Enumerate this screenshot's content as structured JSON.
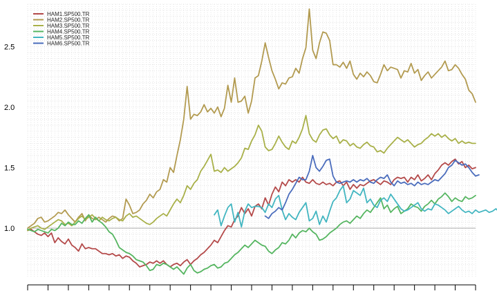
{
  "chart_data": {
    "type": "line",
    "title": "",
    "xlabel": "",
    "ylabel": "",
    "x_count": 133,
    "x_tick_count": 23,
    "ylim": [
      0.6,
      2.85
    ],
    "y_ticks": [
      1.0,
      1.5,
      2.0,
      2.5
    ],
    "y_tick_labels": [
      "1.0",
      "1.5",
      "2.0",
      "2.5"
    ],
    "reference_line": 1.0,
    "grid": true,
    "legend_position": "top-left",
    "series": [
      {
        "name": "HAM1.SP500.TR",
        "color": "#b44a4a",
        "start": 0,
        "values": [
          0.98,
          0.99,
          0.97,
          0.95,
          0.94,
          0.96,
          0.93,
          0.96,
          0.88,
          0.92,
          0.89,
          0.87,
          0.91,
          0.86,
          0.84,
          0.81,
          0.87,
          0.83,
          0.84,
          0.83,
          0.83,
          0.81,
          0.79,
          0.79,
          0.78,
          0.79,
          0.77,
          0.78,
          0.75,
          0.77,
          0.76,
          0.73,
          0.71,
          0.68,
          0.69,
          0.7,
          0.72,
          0.71,
          0.73,
          0.71,
          0.73,
          0.7,
          0.68,
          0.7,
          0.71,
          0.69,
          0.72,
          0.74,
          0.7,
          0.73,
          0.75,
          0.78,
          0.8,
          0.83,
          0.86,
          0.9,
          0.88,
          0.93,
          0.98,
          1.02,
          1.01,
          1.07,
          1.1,
          1.17,
          1.12,
          1.16,
          1.1,
          1.18,
          1.2,
          1.16,
          1.25,
          1.19,
          1.28,
          1.34,
          1.3,
          1.38,
          1.35,
          1.4,
          1.38,
          1.4,
          1.38,
          1.42,
          1.38,
          1.37,
          1.4,
          1.37,
          1.36,
          1.38,
          1.36,
          1.37,
          1.35,
          1.38,
          1.39,
          1.35,
          1.38,
          1.32,
          1.36,
          1.33,
          1.36,
          1.35,
          1.37,
          1.39,
          1.4,
          1.38,
          1.36,
          1.39,
          1.38,
          1.36,
          1.4,
          1.42,
          1.41,
          1.42,
          1.38,
          1.42,
          1.4,
          1.44,
          1.39,
          1.41,
          1.44,
          1.4,
          1.45,
          1.48,
          1.52,
          1.54,
          1.52,
          1.55,
          1.57,
          1.53,
          1.55,
          1.5,
          1.52,
          1.49,
          1.5
        ]
      },
      {
        "name": "HAM2.SP500.TR",
        "color": "#b29a4f",
        "start": 0,
        "values": [
          1.0,
          1.02,
          1.04,
          1.08,
          1.09,
          1.05,
          1.06,
          1.08,
          1.1,
          1.13,
          1.12,
          1.15,
          1.11,
          1.08,
          1.05,
          1.09,
          1.12,
          1.06,
          1.11,
          1.08,
          1.07,
          1.09,
          1.07,
          1.05,
          1.08,
          1.1,
          1.09,
          1.06,
          1.08,
          1.24,
          1.19,
          1.12,
          1.13,
          1.15,
          1.2,
          1.23,
          1.28,
          1.25,
          1.3,
          1.32,
          1.4,
          1.38,
          1.5,
          1.46,
          1.6,
          1.73,
          1.9,
          2.17,
          1.9,
          1.94,
          1.93,
          1.96,
          2.02,
          1.96,
          1.99,
          1.95,
          2.0,
          1.92,
          1.99,
          2.18,
          2.04,
          2.24,
          2.04,
          2.05,
          2.09,
          1.95,
          2.05,
          2.24,
          2.26,
          2.38,
          2.53,
          2.41,
          2.3,
          2.23,
          2.15,
          2.2,
          2.19,
          2.24,
          2.25,
          2.32,
          2.28,
          2.4,
          2.49,
          2.81,
          2.47,
          2.4,
          2.53,
          2.62,
          2.61,
          2.55,
          2.35,
          2.35,
          2.33,
          2.37,
          2.32,
          2.38,
          2.27,
          2.23,
          2.28,
          2.25,
          2.29,
          2.26,
          2.21,
          2.2,
          2.27,
          2.35,
          2.3,
          2.33,
          2.32,
          2.31,
          2.24,
          2.3,
          2.29,
          2.36,
          2.28,
          2.31,
          2.22,
          2.26,
          2.29,
          2.24,
          2.27,
          2.3,
          2.33,
          2.38,
          2.3,
          2.31,
          2.35,
          2.32,
          2.27,
          2.23,
          2.14,
          2.11,
          2.04
        ]
      },
      {
        "name": "HAM3.SP500.TR",
        "color": "#a8b048",
        "start": 0,
        "values": [
          0.98,
          1.0,
          1.01,
          1.02,
          1.0,
          0.99,
          1.01,
          1.03,
          1.05,
          1.07,
          1.06,
          1.03,
          1.04,
          1.02,
          1.05,
          1.08,
          1.1,
          1.07,
          1.09,
          1.11,
          1.08,
          1.06,
          1.09,
          1.07,
          1.06,
          1.08,
          1.09,
          1.07,
          1.06,
          1.1,
          1.12,
          1.09,
          1.1,
          1.08,
          1.06,
          1.04,
          1.03,
          1.05,
          1.08,
          1.1,
          1.12,
          1.1,
          1.15,
          1.2,
          1.24,
          1.21,
          1.27,
          1.35,
          1.32,
          1.37,
          1.4,
          1.47,
          1.51,
          1.56,
          1.61,
          1.47,
          1.48,
          1.46,
          1.5,
          1.47,
          1.49,
          1.51,
          1.54,
          1.58,
          1.66,
          1.65,
          1.72,
          1.77,
          1.85,
          1.8,
          1.67,
          1.64,
          1.65,
          1.7,
          1.76,
          1.71,
          1.67,
          1.65,
          1.72,
          1.7,
          1.75,
          1.82,
          1.93,
          1.78,
          1.73,
          1.71,
          1.77,
          1.81,
          1.82,
          1.77,
          1.74,
          1.76,
          1.7,
          1.73,
          1.72,
          1.68,
          1.7,
          1.67,
          1.66,
          1.69,
          1.71,
          1.68,
          1.67,
          1.63,
          1.64,
          1.62,
          1.66,
          1.69,
          1.72,
          1.75,
          1.73,
          1.71,
          1.73,
          1.7,
          1.67,
          1.69,
          1.7,
          1.73,
          1.75,
          1.78,
          1.76,
          1.78,
          1.75,
          1.77,
          1.74,
          1.72,
          1.74,
          1.7,
          1.72,
          1.7,
          1.71,
          1.7,
          1.7
        ]
      },
      {
        "name": "HAM4.SP500.TR",
        "color": "#55b560",
        "start": 0,
        "values": [
          0.99,
          0.98,
          0.97,
          0.99,
          0.98,
          0.97,
          0.96,
          0.99,
          0.98,
          1.0,
          1.04,
          1.02,
          1.05,
          1.03,
          1.03,
          1.06,
          1.04,
          1.08,
          1.11,
          1.05,
          1.09,
          1.06,
          1.04,
          1.01,
          0.97,
          0.95,
          0.9,
          0.84,
          0.82,
          0.8,
          0.79,
          0.77,
          0.74,
          0.73,
          0.72,
          0.69,
          0.65,
          0.66,
          0.7,
          0.69,
          0.71,
          0.7,
          0.68,
          0.66,
          0.68,
          0.65,
          0.62,
          0.67,
          0.7,
          0.65,
          0.63,
          0.64,
          0.66,
          0.67,
          0.69,
          0.7,
          0.67,
          0.68,
          0.71,
          0.72,
          0.75,
          0.78,
          0.8,
          0.83,
          0.86,
          0.84,
          0.87,
          0.9,
          0.88,
          0.86,
          0.85,
          0.81,
          0.79,
          0.82,
          0.84,
          0.88,
          0.87,
          0.9,
          0.95,
          0.92,
          0.96,
          0.98,
          0.97,
          1.0,
          0.97,
          0.95,
          0.9,
          0.91,
          0.93,
          0.96,
          0.98,
          1.0,
          1.03,
          1.05,
          1.06,
          1.04,
          1.07,
          1.1,
          1.08,
          1.12,
          1.15,
          1.13,
          1.17,
          1.21,
          1.25,
          1.16,
          1.19,
          1.13,
          1.16,
          1.18,
          1.12,
          1.14,
          1.16,
          1.2,
          1.18,
          1.17,
          1.14,
          1.18,
          1.2,
          1.23,
          1.2,
          1.24,
          1.26,
          1.29,
          1.26,
          1.22,
          1.25,
          1.23,
          1.22,
          1.26,
          1.24,
          1.25,
          1.27
        ]
      },
      {
        "name": "HAM5.SP500.TR",
        "color": "#41b5c0",
        "start": 55,
        "values": [
          1.11,
          1.15,
          1.02,
          1.1,
          1.17,
          1.2,
          1.05,
          1.13,
          1.01,
          1.14,
          1.2,
          1.17,
          1.18,
          1.18,
          1.17,
          1.13,
          1.2,
          1.17,
          1.24,
          1.27,
          1.15,
          1.07,
          1.12,
          1.09,
          1.07,
          1.13,
          1.17,
          1.21,
          1.06,
          1.08,
          1.14,
          1.03,
          1.1,
          1.05,
          1.14,
          1.22,
          1.25,
          1.31,
          1.35,
          1.21,
          1.24,
          1.31,
          1.29,
          1.27,
          1.33,
          1.21,
          1.24,
          1.19,
          1.17,
          1.23,
          1.25,
          1.22,
          1.28,
          1.24,
          1.2,
          1.16,
          1.14,
          1.15,
          1.17,
          1.19,
          1.21,
          1.16,
          1.14,
          1.16,
          1.15,
          1.2,
          1.19,
          1.17,
          1.15,
          1.12,
          1.14,
          1.16,
          1.18,
          1.15,
          1.13,
          1.14,
          1.12,
          1.15,
          1.13,
          1.14,
          1.15,
          1.13,
          1.14,
          1.16,
          1.13,
          1.15,
          1.18,
          1.21,
          1.19,
          1.21,
          1.18,
          1.2,
          1.21,
          1.18,
          1.17,
          1.15,
          1.16,
          1.13,
          1.14
        ]
      },
      {
        "name": "HAM6.SP500.TR",
        "color": "#4a6cbc",
        "start": 70,
        "values": [
          1.1,
          1.08,
          1.12,
          1.14,
          1.17,
          1.15,
          1.21,
          1.28,
          1.32,
          1.37,
          1.42,
          1.4,
          1.4,
          1.47,
          1.6,
          1.5,
          1.47,
          1.51,
          1.56,
          1.57,
          1.43,
          1.38,
          1.37,
          1.38,
          1.39,
          1.38,
          1.4,
          1.38,
          1.4,
          1.39,
          1.41,
          1.38,
          1.37,
          1.4,
          1.42,
          1.41,
          1.44,
          1.38,
          1.35,
          1.39,
          1.37,
          1.38,
          1.36,
          1.37,
          1.35,
          1.38,
          1.36,
          1.37,
          1.36,
          1.38,
          1.4,
          1.39,
          1.42,
          1.45,
          1.5,
          1.52,
          1.56,
          1.54,
          1.52,
          1.53,
          1.5,
          1.46,
          1.43,
          1.44
        ]
      }
    ]
  }
}
